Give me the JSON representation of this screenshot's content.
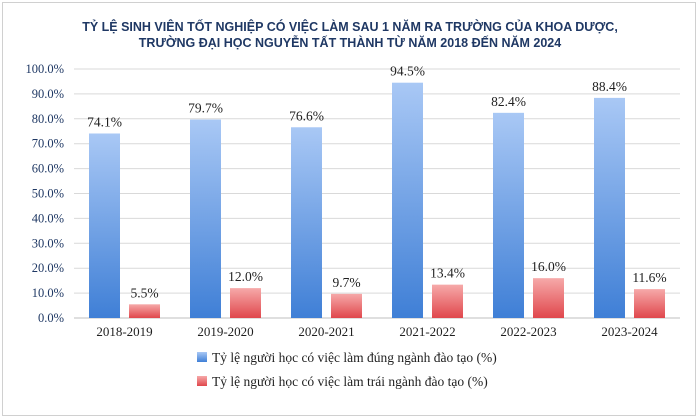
{
  "chart_data": {
    "type": "bar",
    "title_lines": [
      "TỶ LỆ SINH VIÊN TỐT NGHIỆP CÓ VIỆC LÀM SAU 1 NĂM RA TRƯỜNG CỦA KHOA DƯỢC,",
      "TRƯỜNG ĐẠI HỌC NGUYỄN TẤT THÀNH TỪ NĂM 2018 ĐẾN NĂM 2024"
    ],
    "categories": [
      "2018-2019",
      "2019-2020",
      "2020-2021",
      "2021-2022",
      "2022-2023",
      "2023-2024"
    ],
    "series": [
      {
        "name": "Tỷ lệ người học có việc làm đúng ngành đào tạo (%)",
        "values": [
          74.1,
          79.7,
          76.6,
          94.5,
          82.4,
          88.4
        ],
        "labels": [
          "74.1%",
          "79.7%",
          "76.6%",
          "94.5%",
          "82.4%",
          "88.4%"
        ],
        "color_top": "#a9c8f5",
        "color_bottom": "#3f7fd6"
      },
      {
        "name": "Tỷ lệ người học có việc làm trái ngành đào tạo (%)",
        "values": [
          5.5,
          12.0,
          9.7,
          13.4,
          16.0,
          11.6
        ],
        "labels": [
          "5.5%",
          "12.0%",
          "9.7%",
          "13.4%",
          "16.0%",
          "11.6%"
        ],
        "color_top": "#f6a9a9",
        "color_bottom": "#e0474c"
      }
    ],
    "ylim": [
      0,
      100
    ],
    "yticks": [
      "0.0%",
      "10.0%",
      "20.0%",
      "30.0%",
      "40.0%",
      "50.0%",
      "60.0%",
      "70.0%",
      "80.0%",
      "90.0%",
      "100.0%"
    ],
    "xlabel": "",
    "ylabel": "",
    "grid": true,
    "legend_position": "bottom"
  }
}
